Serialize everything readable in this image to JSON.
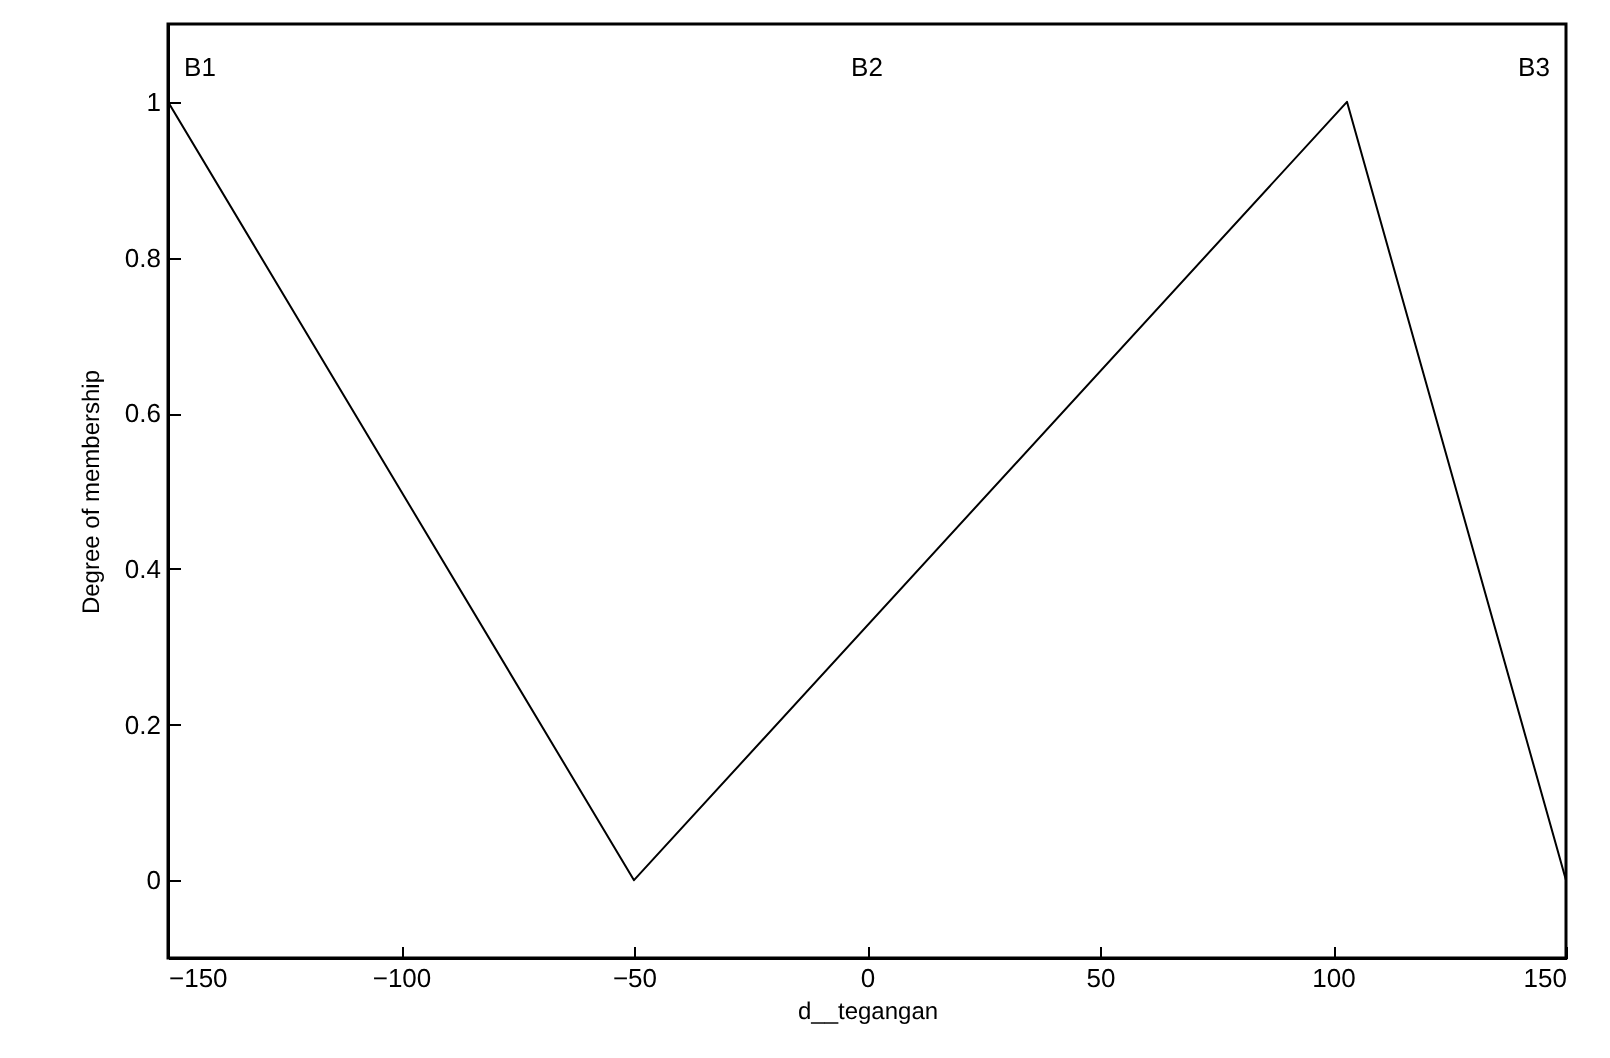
{
  "chart_data": {
    "type": "line",
    "xlabel": "d__tegangan",
    "ylabel": "Degree of membership",
    "series": [
      {
        "color": "#000000",
        "x": [
          -150,
          -50,
          103,
          150
        ],
        "values": [
          1,
          0,
          1,
          0
        ]
      }
    ],
    "xlim": [
      -150,
      150
    ],
    "xticks": [
      -150,
      -100,
      -50,
      0,
      50,
      100,
      150
    ],
    "ylim": [
      -0.1,
      1.1
    ],
    "yticks": [
      {
        "value": 0,
        "label": "0"
      },
      0.2,
      0.4,
      0.6,
      0.8,
      {
        "value": 1,
        "label": "1"
      }
    ],
    "annotations": [
      "B1",
      "B2",
      "B3"
    ],
    "grid": false
  }
}
